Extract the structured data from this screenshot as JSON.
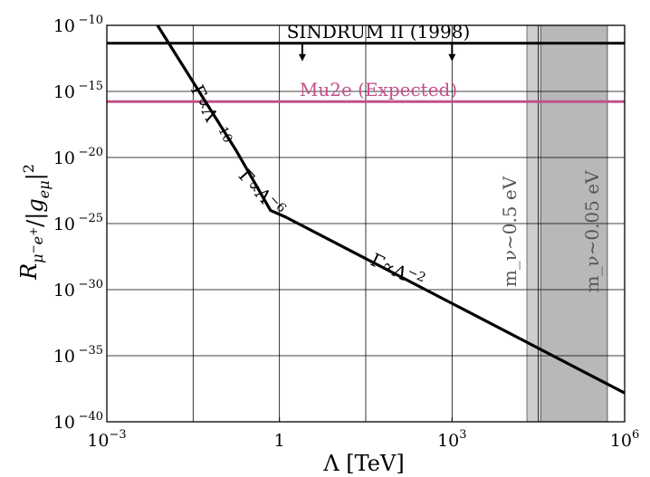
{
  "chart_data": {
    "type": "line",
    "xscale": "log",
    "yscale": "log",
    "xlim": [
      0.001,
      1000000
    ],
    "ylim": [
      1e-40,
      1e-10
    ],
    "xlabel": "Λ [TeV]",
    "ylabel": "R_{μ⁻e⁺}/|g_{eμ}|²",
    "grid": true,
    "x_ticks": [
      {
        "value": 0.001,
        "base": "10",
        "exp": "−3"
      },
      {
        "value": 1,
        "base": "1",
        "exp": ""
      },
      {
        "value": 1000,
        "base": "10",
        "exp": "3"
      },
      {
        "value": 1000000,
        "base": "10",
        "exp": "6"
      }
    ],
    "y_ticks": [
      {
        "value": 1e-10,
        "base": "10",
        "exp": "−10"
      },
      {
        "value": 1e-15,
        "base": "10",
        "exp": "−15"
      },
      {
        "value": 1e-20,
        "base": "10",
        "exp": "−20"
      },
      {
        "value": 1e-25,
        "base": "10",
        "exp": "−25"
      },
      {
        "value": 1e-30,
        "base": "10",
        "exp": "−30"
      },
      {
        "value": 1e-35,
        "base": "10",
        "exp": "−35"
      },
      {
        "value": 1e-40,
        "base": "10",
        "exp": "−40"
      }
    ],
    "series": [
      {
        "color": "#000000",
        "x": [
          0.0065,
          0.18,
          0.7,
          1.3,
          1000000
        ],
        "y": [
          3e-10,
          3e-20,
          1e-24,
          3e-25,
          1.5e-38
        ]
      }
    ],
    "scaling_labels": [
      {
        "text": "Γ∝Λ",
        "exp": "−10",
        "x": 0.05,
        "y": 1e-17,
        "angle": 64
      },
      {
        "text": "Γ∝Λ",
        "exp": "−6",
        "x": 0.4,
        "y": 1e-23,
        "angle": 48
      },
      {
        "text": "Γ∝Λ",
        "exp": "−2",
        "x": 100,
        "y": 1e-29,
        "angle": 26
      }
    ],
    "hlines": [
      {
        "label": "SINDRUM II (1998)",
        "y": 4.4e-12,
        "color": "#000000",
        "arrows_x": [
          2.5,
          1000
        ]
      },
      {
        "label": "Mu2e (Expected)",
        "y": 1.7e-16,
        "color": "#c2508a"
      }
    ],
    "vbands": [
      {
        "label": "m_ν∼0.5 eV",
        "x0": 20000,
        "x1": 500000,
        "color": "#a6a6a6"
      },
      {
        "label": "m_ν∼0.05 eV",
        "x0": 35000,
        "x1": 500000,
        "color": "#a6a6a6"
      }
    ]
  }
}
